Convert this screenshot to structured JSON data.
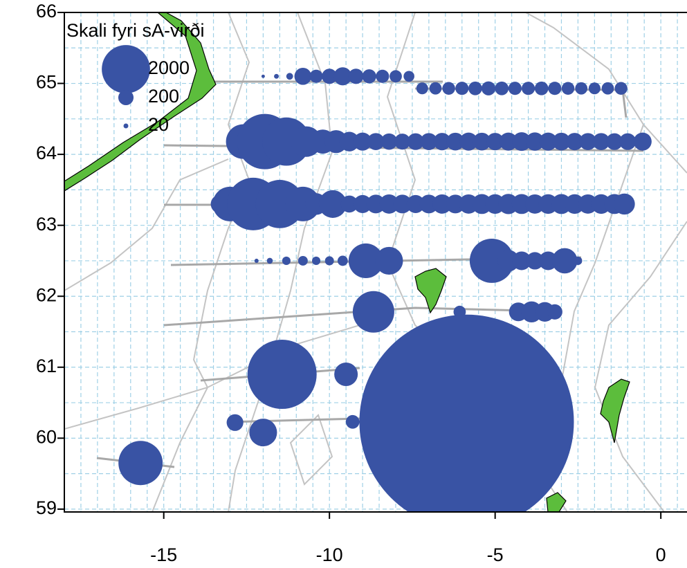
{
  "chart_data": {
    "type": "bubble",
    "color": "#3953a4",
    "xlim": [
      -18,
      0.79
    ],
    "ylim": [
      58.96,
      66.0
    ],
    "xticks": [
      -15,
      -10,
      -5,
      0
    ],
    "yticks": [
      59,
      60,
      61,
      62,
      63,
      64,
      65,
      66
    ],
    "xgrid": [
      -17.5,
      -17,
      -16.5,
      -16,
      -15.5,
      -15,
      -14.5,
      -14,
      -13.5,
      -13,
      -12.5,
      -12,
      -11.5,
      -11,
      -10.5,
      -10,
      -9.5,
      -9,
      -8.5,
      -8,
      -7.5,
      -7,
      -6.5,
      -6,
      -5.5,
      -5,
      -4.5,
      -4,
      -3.5,
      -3,
      -2.5,
      -2,
      -1.5,
      -1,
      -0.5,
      0,
      0.5
    ],
    "ygrid": [
      59,
      59.5,
      60,
      60.5,
      61,
      61.5,
      62,
      62.5,
      63,
      63.5,
      64,
      64.5,
      65,
      65.5,
      66
    ],
    "size_legend": {
      "title": "Skali fyri sA-virði",
      "values": [
        2000,
        200,
        20
      ]
    },
    "x": [
      -12.0,
      -11.6,
      -11.2,
      -10.8,
      -10.4,
      -10.0,
      -9.6,
      -9.2,
      -8.8,
      -8.4,
      -8.0,
      -7.6,
      -7.2,
      -6.8,
      -6.4,
      -6.0,
      -5.6,
      -5.2,
      -4.8,
      -4.4,
      -4.0,
      -3.6,
      -3.2,
      -2.8,
      -2.4,
      -2.0,
      -1.6,
      -1.2,
      -12.6,
      -11.95,
      -11.3,
      -10.7,
      -10.2,
      -9.8,
      -9.4,
      -9.0,
      -8.6,
      -8.2,
      -7.8,
      -7.4,
      -7.0,
      -6.6,
      -6.2,
      -5.8,
      -5.4,
      -5.0,
      -4.6,
      -4.2,
      -3.8,
      -3.4,
      -3.0,
      -2.6,
      -2.2,
      -1.8,
      -1.4,
      -1.0,
      -0.55,
      -13.3,
      -13.0,
      -12.3,
      -11.5,
      -10.8,
      -10.4,
      -9.9,
      -9.4,
      -9.0,
      -8.6,
      -8.2,
      -7.8,
      -7.4,
      -7.0,
      -6.6,
      -6.2,
      -5.8,
      -5.4,
      -5.0,
      -4.6,
      -4.2,
      -3.8,
      -3.4,
      -3.0,
      -2.6,
      -2.2,
      -1.8,
      -1.4,
      -1.1,
      -12.2,
      -11.8,
      -11.3,
      -10.8,
      -10.4,
      -10.0,
      -9.6,
      -9.2,
      -8.9,
      -8.2,
      -5.1,
      -4.6,
      -4.2,
      -3.8,
      -3.4,
      -2.9,
      -2.5,
      -8.67,
      -6.07,
      -4.3,
      -3.9,
      -3.5,
      -3.2,
      -11.43,
      -9.5,
      -12.85,
      -12.0,
      -9.3,
      -5.86,
      -16.0,
      -15.7
    ],
    "y": [
      65.1,
      65.1,
      65.1,
      65.1,
      65.1,
      65.1,
      65.1,
      65.1,
      65.1,
      65.1,
      65.1,
      65.1,
      64.93,
      64.93,
      64.93,
      64.93,
      64.93,
      64.93,
      64.93,
      64.93,
      64.93,
      64.93,
      64.93,
      64.93,
      64.93,
      64.93,
      64.93,
      64.93,
      64.18,
      64.18,
      64.18,
      64.18,
      64.18,
      64.18,
      64.18,
      64.18,
      64.18,
      64.18,
      64.18,
      64.18,
      64.18,
      64.18,
      64.18,
      64.18,
      64.18,
      64.18,
      64.18,
      64.18,
      64.18,
      64.18,
      64.18,
      64.18,
      64.18,
      64.18,
      64.18,
      64.18,
      64.18,
      63.3,
      63.3,
      63.3,
      63.3,
      63.3,
      63.3,
      63.3,
      63.3,
      63.3,
      63.3,
      63.3,
      63.3,
      63.3,
      63.3,
      63.3,
      63.3,
      63.3,
      63.3,
      63.3,
      63.3,
      63.3,
      63.3,
      63.3,
      63.3,
      63.3,
      63.3,
      63.3,
      63.3,
      63.3,
      62.5,
      62.5,
      62.5,
      62.5,
      62.5,
      62.5,
      62.5,
      62.5,
      62.5,
      62.5,
      62.5,
      62.5,
      62.5,
      62.5,
      62.5,
      62.5,
      62.5,
      61.78,
      61.78,
      61.78,
      61.78,
      61.78,
      61.78,
      60.9,
      60.9,
      60.22,
      60.08,
      60.23,
      60.23,
      59.68,
      59.65
    ],
    "sizes": [
      10,
      20,
      40,
      250,
      150,
      200,
      280,
      200,
      170,
      150,
      130,
      100,
      120,
      130,
      140,
      150,
      160,
      170,
      160,
      150,
      150,
      160,
      150,
      140,
      130,
      120,
      130,
      140,
      1030,
      2630,
      2000,
      800,
      500,
      450,
      330,
      280,
      250,
      230,
      220,
      240,
      250,
      260,
      270,
      280,
      270,
      260,
      280,
      300,
      290,
      280,
      270,
      260,
      250,
      250,
      240,
      240,
      280,
      300,
      1030,
      2370,
      2000,
      1030,
      400,
      660,
      250,
      280,
      300,
      320,
      300,
      280,
      300,
      320,
      300,
      320,
      340,
      330,
      350,
      340,
      320,
      330,
      340,
      330,
      320,
      330,
      340,
      380,
      15,
      30,
      60,
      80,
      60,
      70,
      90,
      70,
      1030,
      660,
      1680,
      400,
      300,
      260,
      300,
      550,
      60,
      1480,
      130,
      300,
      380,
      330,
      200,
      4110,
      475,
      240,
      660,
      160,
      39500,
      15,
      1680
    ]
  }
}
